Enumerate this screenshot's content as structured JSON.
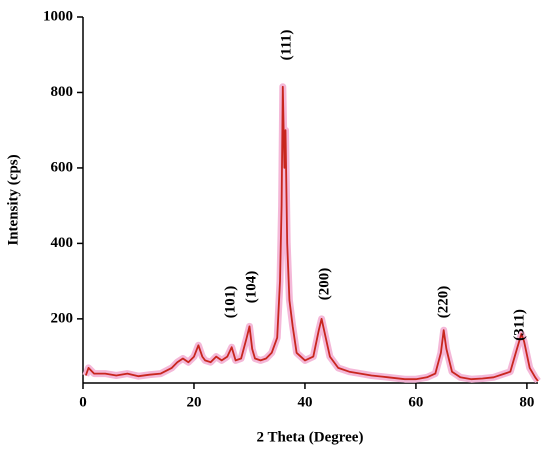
{
  "chart_data": {
    "type": "line",
    "xlabel": "2 Theta (Degree)",
    "ylabel": "Intensity (cps)",
    "xlim": [
      0,
      82
    ],
    "ylim": [
      30,
      1000
    ],
    "xticks": [
      0,
      20,
      40,
      60,
      80
    ],
    "yticks": [
      200,
      400,
      600,
      800,
      1000
    ],
    "grid": false,
    "annotations": [
      "(101)",
      "(104)",
      "(111)",
      "(200)",
      "(220)",
      "(311)"
    ],
    "series": [
      {
        "color": "#c8261e",
        "x": [
          0.5,
          1,
          2,
          4,
          6,
          8,
          10,
          12,
          14,
          16,
          17,
          18,
          19,
          20,
          20.8,
          21.5,
          22,
          23,
          24,
          25,
          26,
          26.8,
          27.5,
          28.5,
          29.5,
          30,
          30.5,
          31,
          32,
          33,
          34,
          35,
          35.5,
          35.8,
          36,
          36.3,
          36.5,
          36.8,
          37.2,
          37.8,
          38.5,
          40,
          41.5,
          42.5,
          43,
          43.6,
          44.5,
          46,
          48,
          50,
          52,
          55,
          58,
          60,
          62,
          63.5,
          64.5,
          65,
          65.5,
          66.5,
          68,
          70,
          72,
          74,
          76,
          77,
          78,
          79,
          79.5,
          80.5,
          81.5,
          82
        ],
        "values": [
          50,
          70,
          55,
          55,
          50,
          55,
          48,
          52,
          55,
          70,
          85,
          95,
          85,
          100,
          130,
          100,
          90,
          85,
          100,
          90,
          100,
          125,
          90,
          95,
          150,
          180,
          120,
          95,
          90,
          95,
          110,
          150,
          300,
          500,
          815,
          600,
          700,
          400,
          250,
          180,
          110,
          90,
          100,
          170,
          200,
          160,
          100,
          70,
          60,
          55,
          50,
          45,
          40,
          40,
          45,
          55,
          110,
          170,
          120,
          60,
          45,
          40,
          42,
          45,
          55,
          60,
          110,
          160,
          140,
          70,
          45,
          35
        ]
      }
    ]
  }
}
